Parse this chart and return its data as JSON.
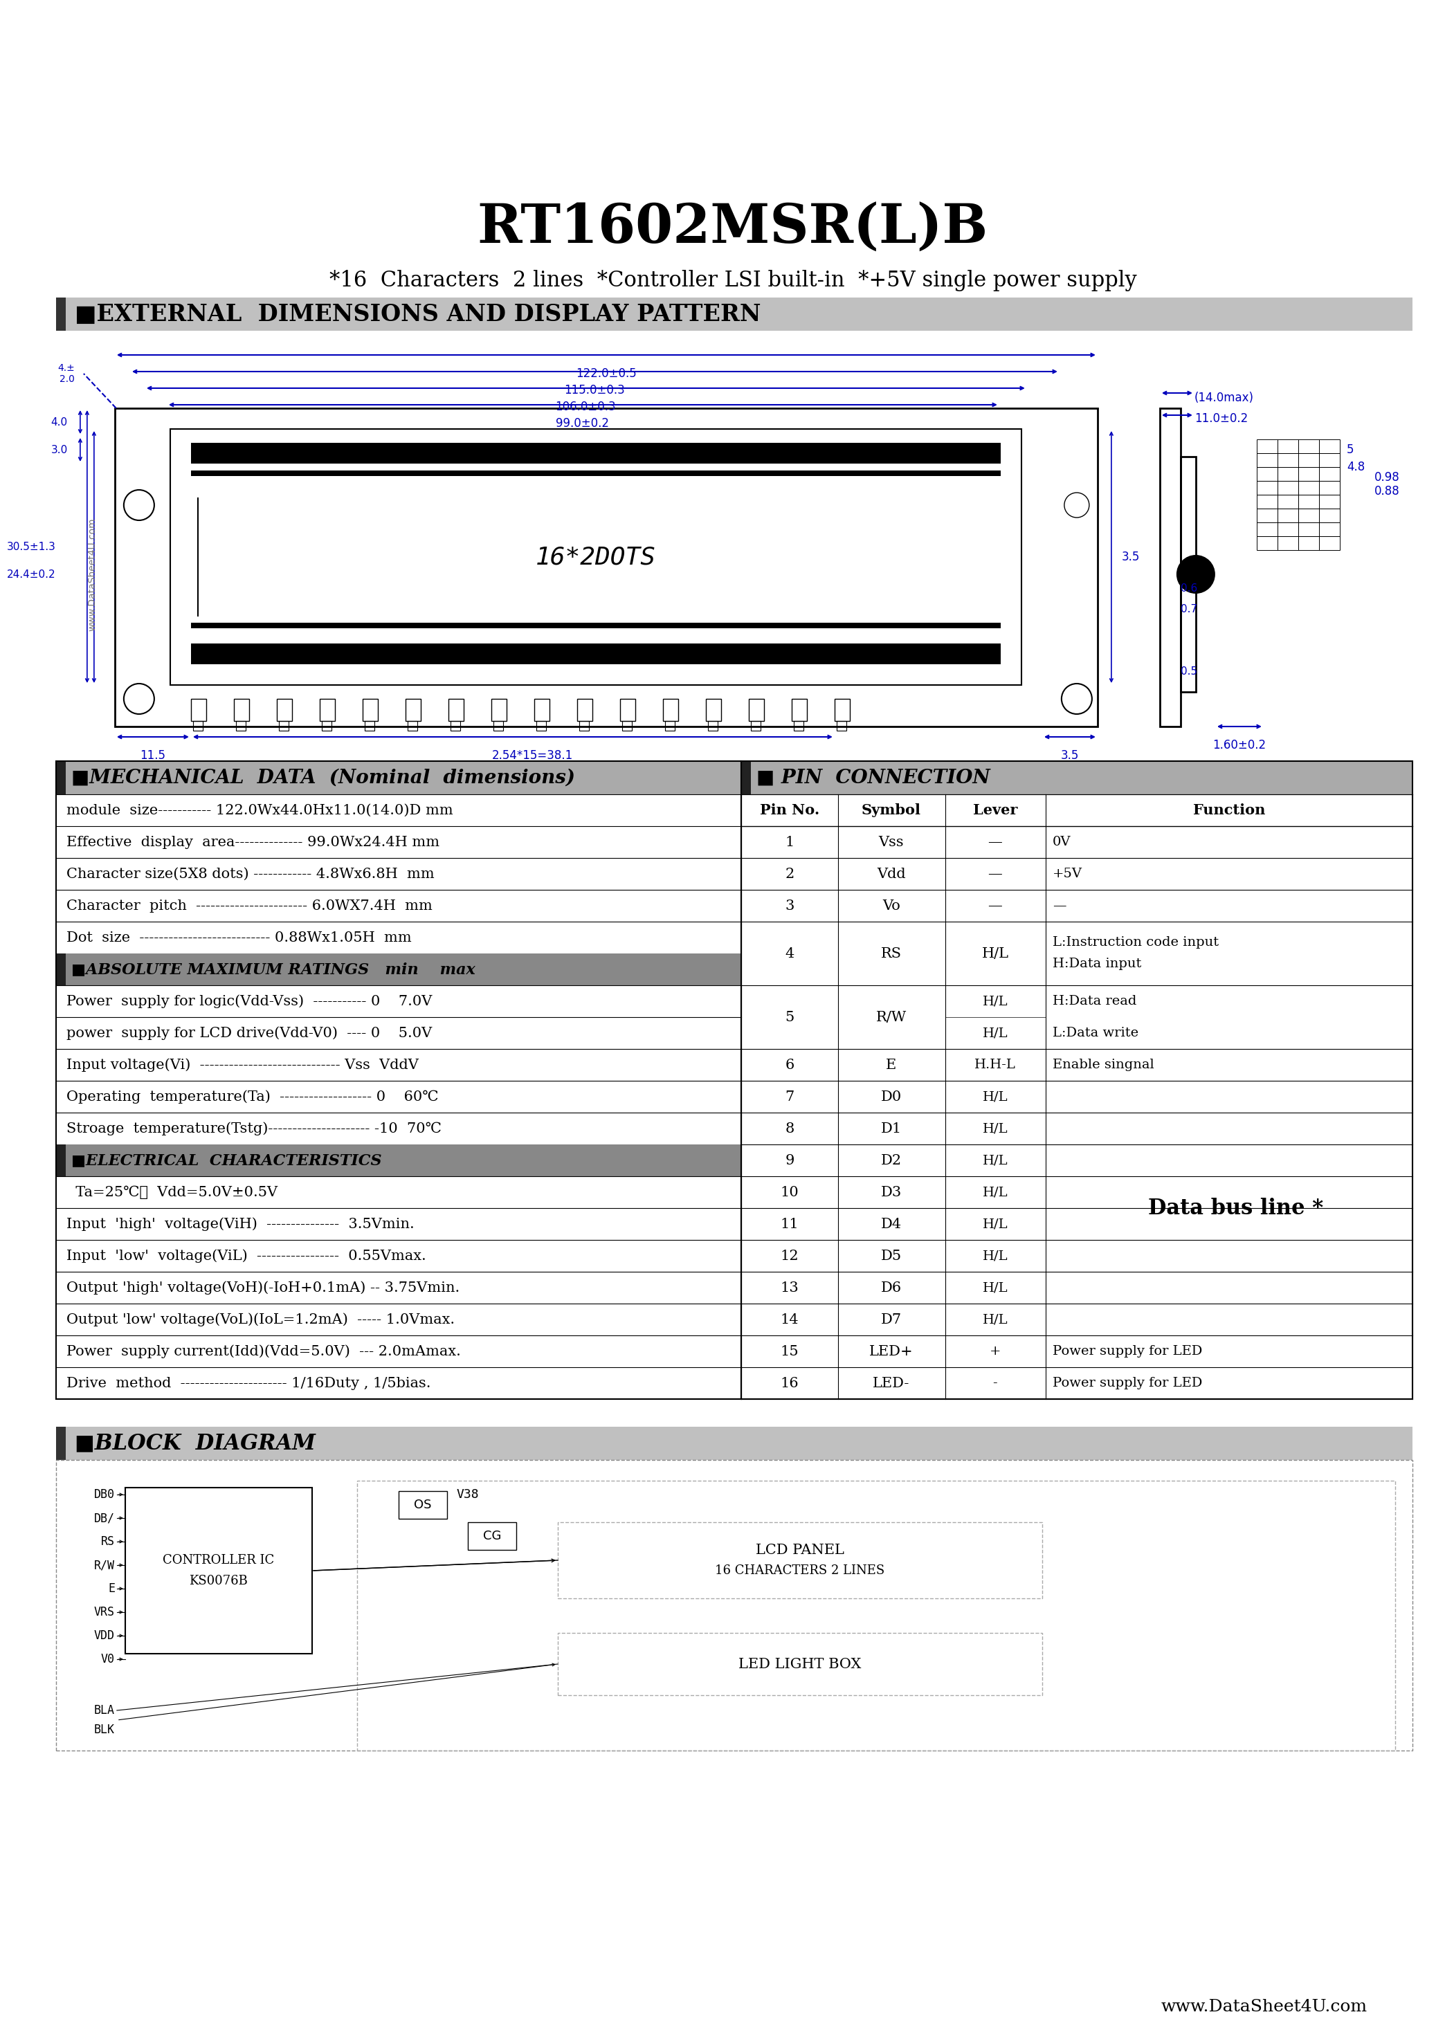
{
  "title": "RT1602MSR(L)B",
  "subtitle": "*16  Characters  2 lines  *Controller LSI built-in  *+5V single power supply",
  "section1_title": "EXTERNAL  DIMENSIONS AND DISPLAY PATTERN",
  "section2_title": "MECHANICAL  DATA  (Nominal  dimensions)",
  "section3_title": "PIN  CONNECTION",
  "section4_title": "BLOCK  DIAGRAM",
  "mech_data": [
    "module  size----------- 122.0Wx44.0Hx11.0(14.0)D mm",
    "Effective  display  area-------------- 99.0Wx24.4H mm",
    "Character size(5X8 dots) ------------ 4.8Wx6.8H  mm",
    "Character  pitch  ----------------------- 6.0WX7.4H  mm",
    "Dot  size  --------------------------- 0.88Wx1.05H  mm"
  ],
  "abs_max_title": "ABSOLUTE MAXIMUM RATINGS   min    max",
  "abs_max_data": [
    "Power  supply for logic(Vdd-Vss)  ----------- 0    7.0V",
    "power  supply for LCD drive(Vdd-V0)  ---- 0    5.0V",
    "Input voltage(Vi)  ----------------------------- Vss  VddV",
    "Operating  temperature(Ta)  ------------------- 0    60℃",
    "Stroage  temperature(Tstg)--------------------- -10  70℃"
  ],
  "elec_title": "ELECTRICAL  CHARACTERISTICS",
  "elec_sub": "  Ta=25℃，  Vdd=5.0V±0.5V",
  "elec_data": [
    "Input  'high'  voltage(ViH)  ---------------  3.5Vmin.",
    "Input  'low'  voltage(ViL)  -----------------  0.55Vmax.",
    "Output 'high' voltage(VoH)(-IoH+0.1mA) -- 3.75Vmin.",
    "Output 'low' voltage(VoL)(IoL=1.2mA)  ----- 1.0Vmax.",
    "Power  supply current(Idd)(Vdd=5.0V)  --- 2.0mAmax.",
    "Drive  method  ---------------------- 1/16Duty , 1/5bias."
  ],
  "pin_table_header": [
    "Pin No.",
    "Symbol",
    "Lever",
    "Function"
  ],
  "pin_rows_single": [
    [
      "1",
      "Vss",
      "—",
      "0V"
    ],
    [
      "2",
      "Vdd",
      "—",
      "+5V"
    ],
    [
      "3",
      "Vo",
      "—",
      "—"
    ]
  ],
  "pin_row4": [
    "4",
    "RS",
    "H/L",
    "L:Instruction code input",
    "H:Data input"
  ],
  "pin_row5": [
    "5",
    "R/W",
    "H/L",
    "H/L",
    "H:Data read",
    "L:Data write"
  ],
  "pin_rows_single2": [
    [
      "6",
      "E",
      "H.H-L",
      "Enable singnal"
    ],
    [
      "7",
      "D0",
      "H/L",
      ""
    ],
    [
      "8",
      "D1",
      "H/L",
      ""
    ],
    [
      "9",
      "D2",
      "H/L",
      ""
    ],
    [
      "10",
      "D3",
      "H/L",
      ""
    ],
    [
      "11",
      "D4",
      "H/L",
      ""
    ],
    [
      "12",
      "D5",
      "H/L",
      ""
    ],
    [
      "13",
      "D6",
      "H/L",
      ""
    ],
    [
      "14",
      "D7",
      "H/L",
      ""
    ],
    [
      "15",
      "LED+",
      "+",
      "Power supply for LED"
    ],
    [
      "16",
      "LED-",
      "-",
      "Power supply for LED"
    ]
  ],
  "data_bus_row": 9,
  "blue": "#0000bb",
  "watermark": "www.DataSheet4U.com",
  "footer": "www.DataSheet4U.com",
  "dim_labels": [
    "122.0±0.5",
    "115.0±0.3",
    "106.0±0.3",
    "99.0±0.2"
  ],
  "left_dim_labels": [
    "4.0",
    "3.0",
    "30.5±1.3",
    "24.4±0.2"
  ],
  "right_dim1": "(14.0max)",
  "right_dim2": "11.0±0.2",
  "right_dims_side": [
    "5",
    "4.8",
    "0.98",
    "0.88"
  ],
  "right_dims_bot": [
    "0.6",
    "0.7",
    "0.5"
  ],
  "right_dim_last": "1.60±0.2",
  "bottom_dims": [
    "11.5",
    "2.54*15=38.1",
    "3.5"
  ],
  "block_signals_left": [
    "DB0",
    "DB/",
    "RS",
    "R/W",
    "E",
    "VRS",
    "VDD",
    "V0"
  ],
  "block_bla": [
    "BLA",
    "BLK"
  ],
  "ctrl_label1": "CONTROLLER IC",
  "ctrl_label2": "KS0076B",
  "v38_label": "V38",
  "os_label": "OS",
  "cg_label": "CG",
  "lcd_label1": "LCD PANEL",
  "lcd_label2": "16 CHARACTERS 2 LINES",
  "led_box_label": "LED LIGHT BOX"
}
